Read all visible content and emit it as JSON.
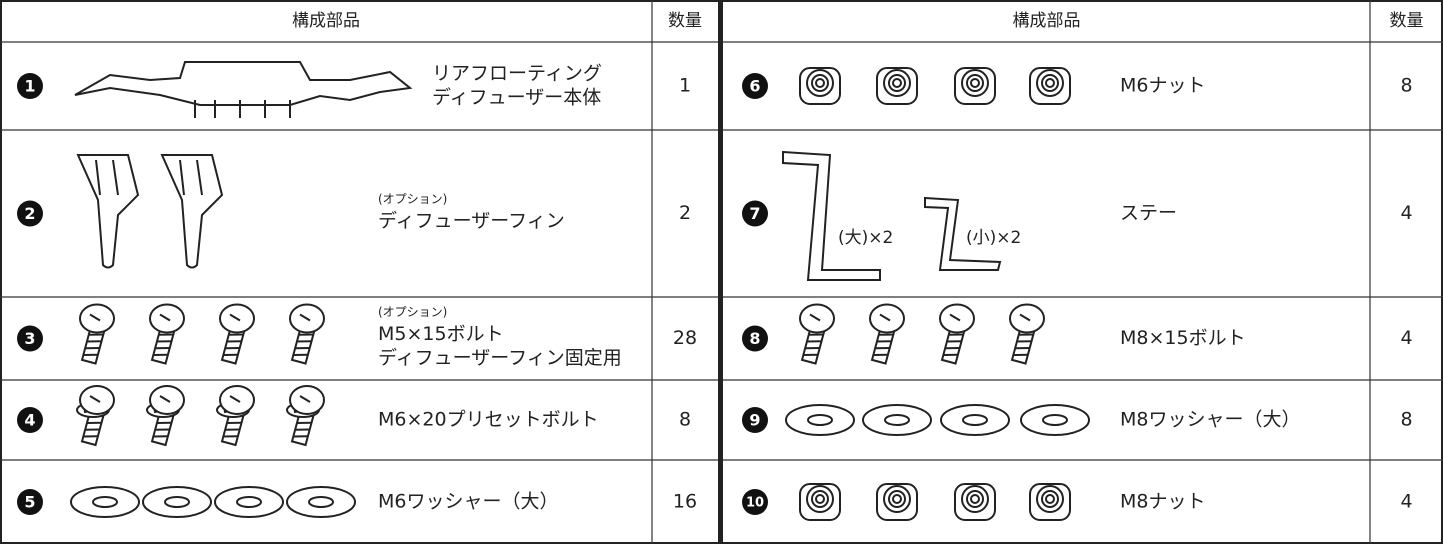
{
  "tables": [
    {
      "header": {
        "part": "構成部品",
        "qty": "数量"
      },
      "rows": [
        {
          "no": "1",
          "lines": [
            "リアフローティング",
            "ディフューザー本体"
          ],
          "qty": "1"
        },
        {
          "no": "2",
          "note": "(オプション)",
          "lines": [
            "ディフューザーフィン"
          ],
          "qty": "2"
        },
        {
          "no": "3",
          "note": "(オプション)",
          "lines": [
            "M5×15ボルト",
            "ディフューザーフィン固定用"
          ],
          "qty": "28"
        },
        {
          "no": "4",
          "lines": [
            "M6×20プリセットボルト"
          ],
          "qty": "8"
        },
        {
          "no": "5",
          "lines": [
            "M6ワッシャー（大）"
          ],
          "qty": "16"
        }
      ]
    },
    {
      "header": {
        "part": "構成部品",
        "qty": "数量"
      },
      "rows": [
        {
          "no": "6",
          "lines": [
            "M6ナット"
          ],
          "qty": "8"
        },
        {
          "no": "7",
          "lines": [
            "ステー"
          ],
          "qty": "4",
          "labels": [
            "(大)×2",
            "(小)×2"
          ]
        },
        {
          "no": "8",
          "lines": [
            "M8×15ボルト"
          ],
          "qty": "4"
        },
        {
          "no": "9",
          "lines": [
            "M8ワッシャー（大）"
          ],
          "qty": "8"
        },
        {
          "no": "10",
          "lines": [
            "M8ナット"
          ],
          "qty": "4"
        }
      ]
    }
  ]
}
